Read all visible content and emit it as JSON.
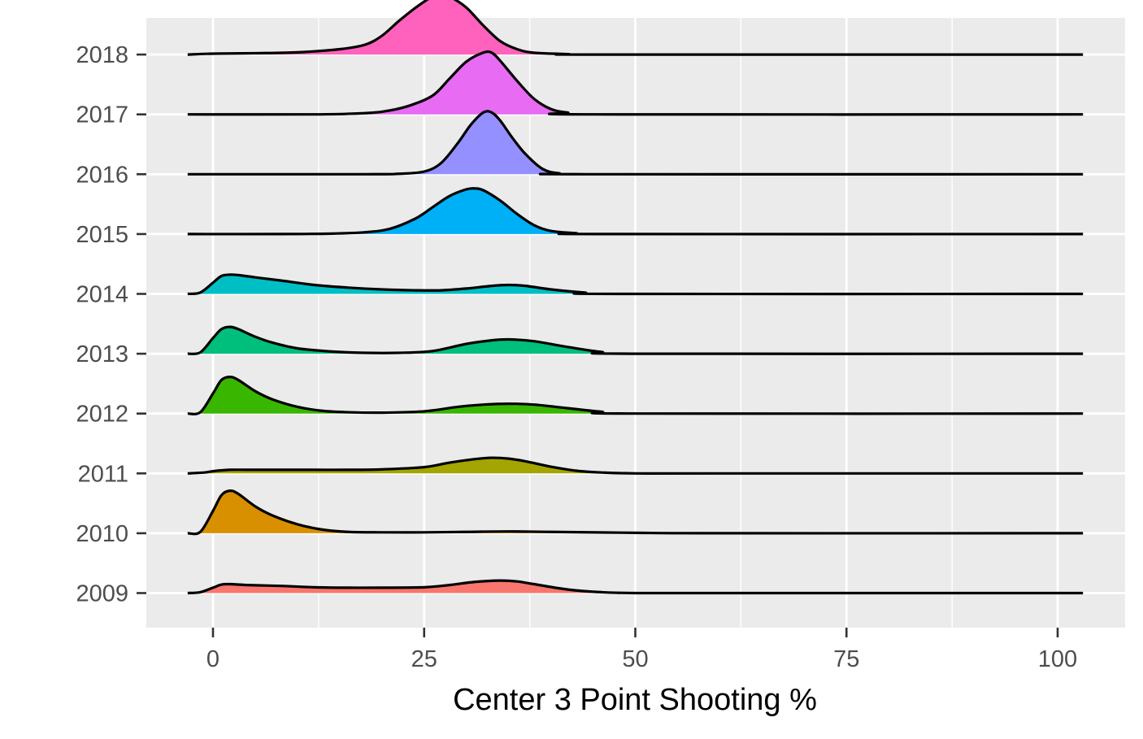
{
  "chart_data": {
    "type": "ridgeline",
    "title": "",
    "xlabel": "Center 3 Point Shooting %",
    "ylabel": "",
    "xlim": [
      -8,
      108
    ],
    "x_ticks": [
      0,
      25,
      50,
      75,
      100
    ],
    "x_tick_labels": [
      "0",
      "25",
      "50",
      "75",
      "100"
    ],
    "grid": true,
    "legend": "none",
    "categories": [
      "2009",
      "2010",
      "2011",
      "2012",
      "2013",
      "2014",
      "2015",
      "2016",
      "2017",
      "2018"
    ],
    "series": [
      {
        "category": "2009",
        "color": "#F8766D",
        "x": [
          -3,
          -1.5,
          0,
          1,
          2,
          4,
          8,
          12,
          16,
          20,
          25,
          28,
          31,
          34,
          36,
          38,
          42,
          46,
          50,
          60,
          80,
          103
        ],
        "height": [
          0,
          0.02,
          0.12,
          0.19,
          0.2,
          0.18,
          0.16,
          0.13,
          0.12,
          0.12,
          0.13,
          0.18,
          0.25,
          0.28,
          0.26,
          0.2,
          0.08,
          0.02,
          0,
          0,
          0,
          0
        ]
      },
      {
        "category": "2010",
        "color": "#D89000",
        "x": [
          -3,
          -1.5,
          0,
          1,
          2,
          3,
          5,
          7,
          10,
          13,
          16,
          20,
          25,
          30,
          35,
          40,
          50,
          60,
          103
        ],
        "height": [
          0,
          0.03,
          0.5,
          0.85,
          0.95,
          0.88,
          0.6,
          0.4,
          0.2,
          0.08,
          0.03,
          0.02,
          0.02,
          0.03,
          0.04,
          0.03,
          0.01,
          0,
          0
        ]
      },
      {
        "category": "2011",
        "color": "#A3A500",
        "x": [
          -3,
          -1,
          0,
          2,
          4,
          8,
          12,
          16,
          20,
          25,
          28,
          31,
          33,
          35,
          37,
          40,
          43,
          46,
          50,
          60,
          103
        ],
        "height": [
          0,
          0.02,
          0.05,
          0.08,
          0.08,
          0.08,
          0.08,
          0.08,
          0.09,
          0.14,
          0.24,
          0.32,
          0.35,
          0.33,
          0.27,
          0.15,
          0.06,
          0.02,
          0,
          0,
          0
        ]
      },
      {
        "category": "2012",
        "color": "#39B600",
        "x": [
          -3,
          -1.5,
          0,
          1,
          2,
          3,
          5,
          7,
          10,
          13,
          16,
          20,
          25,
          29,
          32,
          35,
          38,
          42,
          46,
          50,
          103
        ],
        "height": [
          0,
          0.03,
          0.45,
          0.75,
          0.82,
          0.75,
          0.5,
          0.32,
          0.15,
          0.06,
          0.03,
          0.02,
          0.05,
          0.15,
          0.2,
          0.22,
          0.2,
          0.12,
          0.04,
          0,
          0
        ]
      },
      {
        "category": "2013",
        "color": "#00BF7D",
        "x": [
          -3,
          -1.5,
          0,
          1,
          2,
          3,
          5,
          7,
          10,
          14,
          18,
          22,
          26,
          30,
          33,
          35,
          38,
          42,
          46,
          50,
          103
        ],
        "height": [
          0,
          0.03,
          0.35,
          0.55,
          0.6,
          0.55,
          0.38,
          0.25,
          0.12,
          0.05,
          0.02,
          0.02,
          0.06,
          0.22,
          0.3,
          0.32,
          0.28,
          0.15,
          0.04,
          0,
          0
        ]
      },
      {
        "category": "2014",
        "color": "#00BFC4",
        "x": [
          -3,
          -1.5,
          0,
          1,
          2,
          3,
          5,
          8,
          12,
          16,
          20,
          24,
          27,
          30,
          33,
          35,
          37,
          40,
          44,
          48,
          103
        ],
        "height": [
          0,
          0.03,
          0.25,
          0.4,
          0.43,
          0.42,
          0.37,
          0.3,
          0.2,
          0.14,
          0.1,
          0.08,
          0.08,
          0.12,
          0.18,
          0.2,
          0.18,
          0.1,
          0.03,
          0,
          0
        ]
      },
      {
        "category": "2015",
        "color": "#00B0F6",
        "x": [
          -3,
          8,
          14,
          18,
          21,
          24,
          26,
          28,
          30,
          31,
          32,
          34,
          36,
          38,
          40,
          43,
          46,
          103
        ],
        "height": [
          0,
          0,
          0.01,
          0.04,
          0.12,
          0.35,
          0.6,
          0.85,
          1.0,
          1.02,
          0.98,
          0.75,
          0.45,
          0.2,
          0.07,
          0.02,
          0,
          0
        ]
      },
      {
        "category": "2016",
        "color": "#9590FF",
        "x": [
          -3,
          18,
          22,
          25,
          27,
          29,
          30.5,
          32,
          33,
          34,
          35.5,
          37,
          39,
          41,
          44,
          103
        ],
        "height": [
          0,
          0,
          0.01,
          0.06,
          0.25,
          0.7,
          1.1,
          1.38,
          1.38,
          1.2,
          0.8,
          0.45,
          0.12,
          0.02,
          0,
          0
        ]
      },
      {
        "category": "2017",
        "color": "#E76BF3",
        "x": [
          -3,
          12,
          17,
          20,
          23,
          26,
          28,
          30,
          32,
          33,
          34,
          36,
          38,
          40,
          42,
          45,
          103
        ],
        "height": [
          0,
          0,
          0.02,
          0.06,
          0.18,
          0.42,
          0.8,
          1.18,
          1.38,
          1.38,
          1.2,
          0.75,
          0.35,
          0.12,
          0.04,
          0,
          0
        ]
      },
      {
        "category": "2018",
        "color": "#FF62BC",
        "x": [
          -3,
          0,
          5,
          10,
          15,
          18,
          20,
          22,
          24,
          26,
          27,
          28,
          30,
          32,
          34,
          36,
          38,
          42,
          46,
          103
        ],
        "height": [
          0,
          0.02,
          0.03,
          0.05,
          0.12,
          0.22,
          0.42,
          0.75,
          1.05,
          1.3,
          1.35,
          1.3,
          1.05,
          0.65,
          0.3,
          0.12,
          0.04,
          0.01,
          0,
          0
        ]
      }
    ]
  }
}
